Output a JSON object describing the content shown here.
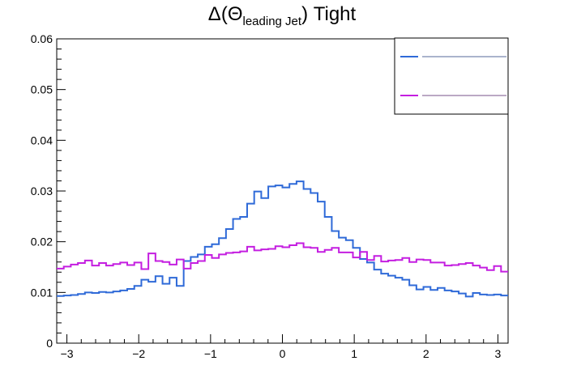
{
  "chart_data": {
    "type": "step",
    "title_main": "Δ(Θ",
    "title_sub": "leading Jet",
    "title_end": ") Tight",
    "xlim": [
      -3.1416,
      3.1416
    ],
    "ylim": [
      0,
      0.06
    ],
    "x_ticks": [
      -3,
      -2,
      -1,
      0,
      1,
      2,
      3
    ],
    "x_tick_labels": [
      "−3",
      "−2",
      "−1",
      "0",
      "1",
      "2",
      "3"
    ],
    "y_ticks": [
      0,
      0.01,
      0.02,
      0.03,
      0.04,
      0.05,
      0.06
    ],
    "y_tick_labels": [
      "0",
      "0.01",
      "0.02",
      "0.03",
      "0.04",
      "0.05",
      "0.06"
    ],
    "grid": false,
    "legend_position": "top-right",
    "bins": 64,
    "series": [
      {
        "name": "",
        "color": "#2f6ad8",
        "values": [
          0.0093,
          0.0094,
          0.0095,
          0.0097,
          0.01,
          0.0099,
          0.0101,
          0.01,
          0.0102,
          0.0104,
          0.0107,
          0.0113,
          0.0125,
          0.0121,
          0.0132,
          0.0117,
          0.0129,
          0.0113,
          0.0162,
          0.017,
          0.0175,
          0.019,
          0.0195,
          0.0207,
          0.0225,
          0.0245,
          0.0249,
          0.0275,
          0.0299,
          0.0286,
          0.0309,
          0.0311,
          0.0307,
          0.0314,
          0.0319,
          0.0304,
          0.0296,
          0.0279,
          0.0249,
          0.0221,
          0.0208,
          0.0203,
          0.0188,
          0.0166,
          0.0159,
          0.0145,
          0.0137,
          0.0133,
          0.0129,
          0.0125,
          0.0114,
          0.0106,
          0.0111,
          0.0105,
          0.0109,
          0.0104,
          0.0102,
          0.0098,
          0.0092,
          0.0099,
          0.0096,
          0.0095,
          0.0096,
          0.0094
        ]
      },
      {
        "name": "",
        "color": "#c41ee0",
        "values": [
          0.0147,
          0.0151,
          0.0155,
          0.0158,
          0.0163,
          0.0153,
          0.0158,
          0.0153,
          0.0156,
          0.0159,
          0.0154,
          0.0159,
          0.0146,
          0.0177,
          0.0162,
          0.016,
          0.0155,
          0.0165,
          0.0147,
          0.0158,
          0.0162,
          0.0174,
          0.0168,
          0.0175,
          0.0178,
          0.0179,
          0.0181,
          0.019,
          0.0183,
          0.0185,
          0.0186,
          0.0191,
          0.0189,
          0.0193,
          0.0197,
          0.0189,
          0.0188,
          0.018,
          0.0184,
          0.0188,
          0.0179,
          0.0179,
          0.0169,
          0.018,
          0.0164,
          0.0172,
          0.0161,
          0.0163,
          0.0164,
          0.0168,
          0.016,
          0.0165,
          0.0164,
          0.0159,
          0.0159,
          0.0153,
          0.0154,
          0.0156,
          0.0158,
          0.0153,
          0.0149,
          0.0144,
          0.0152,
          0.0141
        ]
      }
    ]
  }
}
